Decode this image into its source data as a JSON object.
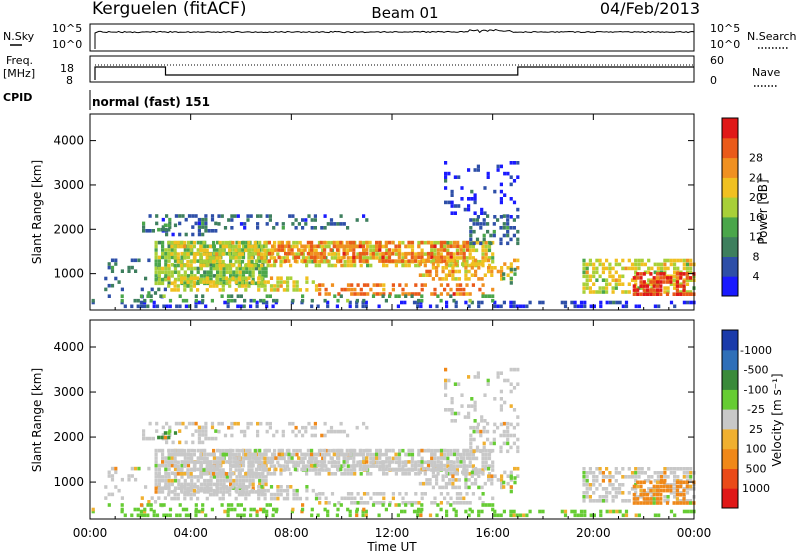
{
  "header": {
    "station": "Kerguelen (fitACF)",
    "beam": "Beam 01",
    "date": "04/Feb/2013"
  },
  "labels": {
    "nsky": "N.Sky",
    "nsearch": "N.Search",
    "freq_line1": "Freq.",
    "freq_line2": "[MHz]",
    "nave": "Nave",
    "cpid": "CPID",
    "cpid_value": "normal (fast) 151",
    "nsky_ticks": [
      "10^5",
      "10^0"
    ],
    "nsearch_ticks": [
      "10^5",
      "10^0"
    ],
    "freq_ticks": [
      "18",
      "8"
    ],
    "nave_ticks": [
      "60",
      "0"
    ]
  },
  "chart_data": [
    {
      "type": "heatmap",
      "name": "power",
      "ylabel": "Slant Range [km]",
      "yticks": [
        1000,
        2000,
        3000,
        4000
      ],
      "ylim": [
        180,
        4600
      ],
      "colorbar": {
        "label": "Power [dB]",
        "ticks": [
          4,
          8,
          12,
          16,
          20,
          24,
          28
        ],
        "colors": [
          "#1a1aff",
          "#2e4fa8",
          "#3e7f5e",
          "#4aa64a",
          "#a8d038",
          "#f0c020",
          "#f09020",
          "#ea5a1a",
          "#e01818"
        ]
      }
    },
    {
      "type": "heatmap",
      "name": "velocity",
      "ylabel": "Slant Range [km]",
      "yticks": [
        1000,
        2000,
        3000,
        4000
      ],
      "ylim": [
        180,
        4600
      ],
      "colorbar": {
        "label": "Velocity [m s⁻¹]",
        "ticks": [
          "1000",
          "500",
          "100",
          "25",
          "-25",
          "-100",
          "-500",
          "-1000"
        ],
        "colors": [
          "#1a3aaa",
          "#2f6fb8",
          "#3a8a3a",
          "#66cc33",
          "#c8c8c8",
          "#f0b030",
          "#f08818",
          "#ea4a18",
          "#e01818"
        ]
      }
    }
  ],
  "xaxis": {
    "label": "Time UT",
    "ticks": [
      "00:00",
      "04:00",
      "08:00",
      "12:00",
      "16:00",
      "20:00",
      "00:00"
    ]
  }
}
